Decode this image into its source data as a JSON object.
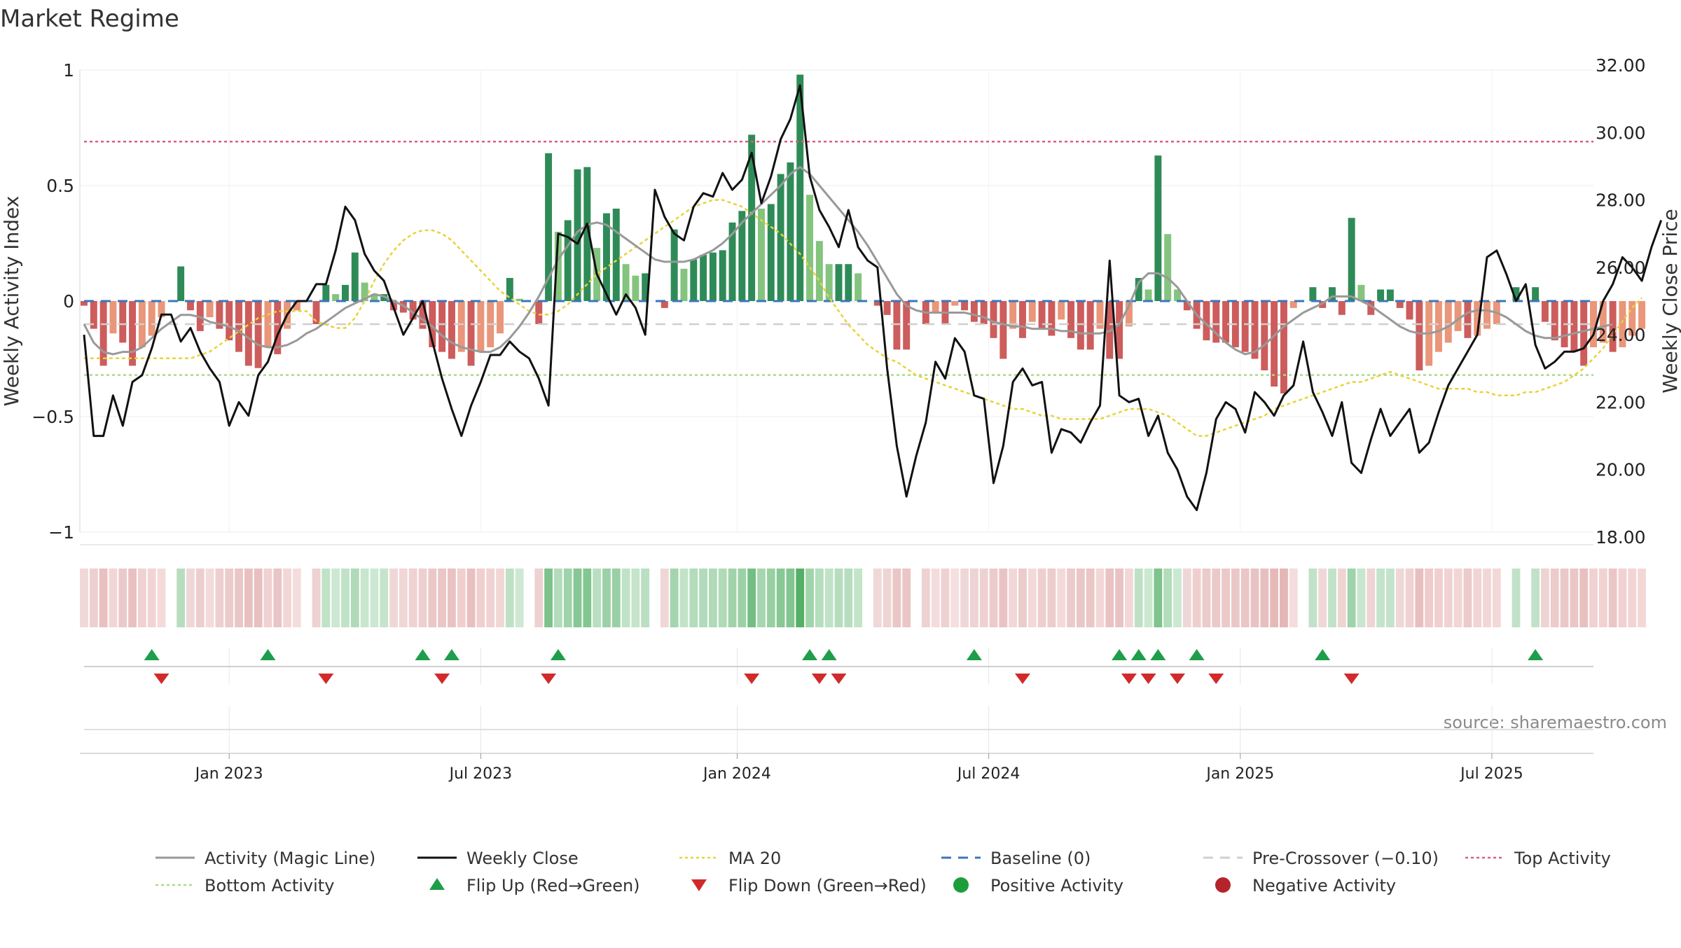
{
  "chart_data": {
    "type": "bar+line",
    "title": "Market Regime",
    "source": "source: sharemaestro.com",
    "ylabel_left": "Weekly Activity Index",
    "ylabel_right": "Weekly Close Price",
    "ylim_left": [
      -1.0,
      1.0
    ],
    "ylim_right": [
      18.0,
      32.0
    ],
    "yticks_left": [
      {
        "value": 1,
        "label": "1"
      },
      {
        "value": 0.5,
        "label": "0.5"
      },
      {
        "value": 0,
        "label": "0"
      },
      {
        "value": -0.5,
        "label": "−0.5"
      },
      {
        "value": -1,
        "label": "−1"
      }
    ],
    "yticks_right": [
      {
        "value": 32,
        "label": "32.00"
      },
      {
        "value": 30,
        "label": "30.00"
      },
      {
        "value": 28,
        "label": "28.00"
      },
      {
        "value": 26,
        "label": "26.00"
      },
      {
        "value": 24,
        "label": "24.00"
      },
      {
        "value": 22,
        "label": "22.00"
      },
      {
        "value": 20,
        "label": "20.00"
      },
      {
        "value": 18,
        "label": "18.00"
      }
    ],
    "x_week_range": [
      0,
      157
    ],
    "xticks": [
      {
        "week": 15,
        "label": "Jan 2023"
      },
      {
        "week": 41,
        "label": "Jul 2023"
      },
      {
        "week": 67.5,
        "label": "Jan 2024"
      },
      {
        "week": 93.5,
        "label": "Jul 2024"
      },
      {
        "week": 119.5,
        "label": "Jan 2025"
      },
      {
        "week": 145.5,
        "label": "Jul 2025"
      }
    ],
    "reference_lines": {
      "baseline": 0,
      "pre_crossover": -0.1,
      "top_activity": 0.69,
      "bottom_activity": -0.32
    },
    "activity_index": [
      -0.02,
      -0.12,
      -0.28,
      -0.14,
      -0.18,
      -0.28,
      -0.2,
      -0.15,
      -0.07,
      0.0,
      0.15,
      -0.04,
      -0.13,
      -0.07,
      -0.12,
      -0.17,
      -0.22,
      -0.28,
      -0.29,
      -0.2,
      -0.23,
      -0.12,
      -0.04,
      0.0,
      -0.1,
      0.07,
      0.03,
      0.07,
      0.21,
      0.08,
      0.03,
      0.03,
      -0.04,
      -0.05,
      -0.08,
      -0.12,
      -0.2,
      -0.22,
      -0.25,
      -0.22,
      -0.28,
      -0.22,
      -0.2,
      -0.14,
      0.1,
      0.01,
      0.0,
      -0.1,
      0.64,
      0.3,
      0.35,
      0.57,
      0.58,
      0.23,
      0.38,
      0.4,
      0.16,
      0.11,
      0.12,
      0.0,
      -0.03,
      0.31,
      0.14,
      0.18,
      0.2,
      0.21,
      0.22,
      0.34,
      0.39,
      0.72,
      0.4,
      0.42,
      0.55,
      0.6,
      0.98,
      0.46,
      0.26,
      0.16,
      0.16,
      0.16,
      0.12,
      0.0,
      -0.02,
      -0.06,
      -0.21,
      -0.21,
      0.0,
      -0.1,
      -0.05,
      -0.1,
      -0.02,
      -0.04,
      -0.09,
      -0.1,
      -0.16,
      -0.25,
      -0.12,
      -0.16,
      -0.09,
      -0.12,
      -0.15,
      -0.08,
      -0.16,
      -0.21,
      -0.21,
      -0.12,
      -0.25,
      -0.25,
      -0.11,
      0.1,
      0.05,
      0.63,
      0.29,
      0.05,
      -0.04,
      -0.12,
      -0.17,
      -0.18,
      -0.18,
      -0.2,
      -0.22,
      -0.25,
      -0.3,
      -0.37,
      -0.4,
      -0.03,
      0.0,
      0.06,
      -0.03,
      0.06,
      -0.06,
      0.36,
      0.07,
      -0.06,
      0.05,
      0.05,
      -0.03,
      -0.08,
      -0.3,
      -0.28,
      -0.22,
      -0.18,
      -0.13,
      -0.16,
      -0.15,
      -0.12,
      -0.1,
      0.0,
      0.06,
      0.0,
      0.06,
      -0.09,
      -0.17,
      -0.2,
      -0.22,
      -0.28,
      -0.2,
      -0.18,
      -0.22,
      -0.2,
      -0.15,
      -0.12
    ],
    "weekly_close": [
      24.0,
      21.0,
      21.0,
      22.2,
      21.3,
      22.6,
      22.8,
      23.6,
      24.6,
      24.6,
      23.8,
      24.2,
      23.5,
      23.0,
      22.6,
      21.3,
      22.0,
      21.6,
      22.8,
      23.2,
      24.0,
      24.6,
      25.0,
      25.0,
      25.5,
      25.5,
      26.5,
      27.8,
      27.4,
      26.4,
      25.9,
      25.6,
      24.8,
      24.0,
      24.5,
      25.0,
      23.8,
      22.7,
      21.8,
      21.0,
      21.9,
      22.6,
      23.4,
      23.4,
      23.8,
      23.5,
      23.3,
      22.7,
      21.9,
      27.0,
      26.9,
      26.7,
      27.3,
      25.8,
      25.2,
      24.6,
      25.2,
      24.8,
      24.0,
      28.3,
      27.5,
      27.0,
      26.8,
      27.8,
      28.2,
      28.1,
      28.8,
      28.3,
      28.6,
      29.4,
      27.9,
      28.7,
      29.8,
      30.4,
      31.4,
      28.7,
      27.7,
      27.2,
      26.6,
      27.7,
      26.6,
      26.2,
      26.0,
      23.0,
      20.7,
      19.2,
      20.4,
      21.4,
      23.2,
      22.7,
      23.9,
      23.5,
      22.2,
      22.1,
      19.6,
      20.7,
      22.6,
      23.0,
      22.5,
      22.6,
      20.5,
      21.2,
      21.1,
      20.8,
      21.4,
      21.9,
      26.2,
      22.2,
      22.0,
      22.1,
      21.0,
      21.6,
      20.5,
      20.0,
      19.2,
      18.8,
      19.9,
      21.5,
      22.0,
      21.8,
      21.1,
      22.3,
      22.0,
      21.6,
      22.2,
      22.5,
      23.8,
      22.3,
      21.7,
      21.0,
      22.0,
      20.2,
      19.9,
      20.9,
      21.8,
      21.0,
      21.4,
      21.8,
      20.5,
      20.8,
      21.7,
      22.5,
      23.0,
      23.5,
      24.0,
      26.3,
      26.5,
      25.8,
      25.0,
      25.5,
      23.7,
      23.0,
      23.2,
      23.5,
      23.5,
      23.6,
      24.0,
      25.0,
      25.5,
      26.3,
      26.0,
      25.6,
      26.6,
      27.4
    ],
    "ma20": [
      23.3,
      23.3,
      23.3,
      23.3,
      23.3,
      23.3,
      23.3,
      23.3,
      23.3,
      23.3,
      23.3,
      23.3,
      23.4,
      23.5,
      23.7,
      23.9,
      24.1,
      24.3,
      24.5,
      24.6,
      24.7,
      24.7,
      24.7,
      24.7,
      24.4,
      24.3,
      24.2,
      24.2,
      24.5,
      25.0,
      25.6,
      26.1,
      26.5,
      26.8,
      27.0,
      27.1,
      27.1,
      27.0,
      26.8,
      26.5,
      26.2,
      25.9,
      25.6,
      25.3,
      25.1,
      24.9,
      24.7,
      24.6,
      24.6,
      24.7,
      24.9,
      25.2,
      25.5,
      25.8,
      26.0,
      26.2,
      26.4,
      26.6,
      26.8,
      27.0,
      27.2,
      27.4,
      27.6,
      27.8,
      27.9,
      28.0,
      28.0,
      27.9,
      27.8,
      27.6,
      27.4,
      27.2,
      27.0,
      26.7,
      26.4,
      26.0,
      25.6,
      25.1,
      24.7,
      24.3,
      24.0,
      23.7,
      23.5,
      23.3,
      23.2,
      23.0,
      22.8,
      22.7,
      22.6,
      22.5,
      22.4,
      22.3,
      22.2,
      22.1,
      22.0,
      21.9,
      21.8,
      21.8,
      21.7,
      21.6,
      21.6,
      21.5,
      21.5,
      21.5,
      21.5,
      21.5,
      21.6,
      21.7,
      21.8,
      21.8,
      21.8,
      21.7,
      21.6,
      21.4,
      21.2,
      21.0,
      21.0,
      21.1,
      21.2,
      21.3,
      21.4,
      21.5,
      21.6,
      21.8,
      21.9,
      22.0,
      22.1,
      22.2,
      22.3,
      22.4,
      22.5,
      22.6,
      22.6,
      22.7,
      22.8,
      22.9,
      22.8,
      22.7,
      22.6,
      22.5,
      22.4,
      22.4,
      22.4,
      22.4,
      22.3,
      22.3,
      22.2,
      22.2,
      22.2,
      22.3,
      22.3,
      22.4,
      22.5,
      22.6,
      22.8,
      23.0,
      23.3,
      23.6,
      24.0,
      24.4,
      24.8,
      25.1
    ],
    "magic_line": [
      -0.1,
      -0.18,
      -0.22,
      -0.23,
      -0.22,
      -0.22,
      -0.2,
      -0.16,
      -0.12,
      -0.09,
      -0.06,
      -0.06,
      -0.07,
      -0.09,
      -0.1,
      -0.11,
      -0.13,
      -0.16,
      -0.19,
      -0.2,
      -0.2,
      -0.19,
      -0.17,
      -0.14,
      -0.12,
      -0.09,
      -0.06,
      -0.03,
      -0.01,
      0.01,
      0.03,
      0.02,
      0.0,
      -0.02,
      -0.05,
      -0.08,
      -0.11,
      -0.15,
      -0.18,
      -0.2,
      -0.21,
      -0.22,
      -0.22,
      -0.2,
      -0.16,
      -0.11,
      -0.05,
      0.02,
      0.1,
      0.18,
      0.24,
      0.3,
      0.33,
      0.34,
      0.33,
      0.3,
      0.27,
      0.24,
      0.21,
      0.18,
      0.17,
      0.17,
      0.17,
      0.18,
      0.2,
      0.22,
      0.25,
      0.29,
      0.34,
      0.38,
      0.42,
      0.46,
      0.5,
      0.55,
      0.58,
      0.55,
      0.5,
      0.45,
      0.4,
      0.35,
      0.3,
      0.24,
      0.17,
      0.1,
      0.03,
      -0.02,
      -0.04,
      -0.05,
      -0.05,
      -0.05,
      -0.05,
      -0.05,
      -0.06,
      -0.07,
      -0.09,
      -0.1,
      -0.11,
      -0.11,
      -0.12,
      -0.12,
      -0.12,
      -0.13,
      -0.13,
      -0.14,
      -0.14,
      -0.14,
      -0.13,
      -0.1,
      -0.02,
      0.08,
      0.12,
      0.12,
      0.1,
      0.06,
      0.0,
      -0.06,
      -0.1,
      -0.14,
      -0.18,
      -0.21,
      -0.23,
      -0.22,
      -0.19,
      -0.15,
      -0.11,
      -0.08,
      -0.05,
      -0.03,
      -0.01,
      0.02,
      0.02,
      0.02,
      0.0,
      -0.02,
      -0.05,
      -0.08,
      -0.11,
      -0.13,
      -0.14,
      -0.14,
      -0.13,
      -0.11,
      -0.08,
      -0.05,
      -0.04,
      -0.04,
      -0.05,
      -0.07,
      -0.1,
      -0.13,
      -0.15,
      -0.16,
      -0.16,
      -0.15,
      -0.14,
      -0.13,
      -0.12,
      -0.11,
      -0.1
    ],
    "flip_up_weeks": [
      7,
      19,
      35,
      38,
      49,
      75,
      77,
      92,
      107,
      109,
      111,
      115,
      128,
      150
    ],
    "flip_down_weeks": [
      8,
      25,
      37,
      48,
      69,
      76,
      78,
      97,
      108,
      110,
      113,
      117,
      131
    ],
    "legend": [
      {
        "label": "Activity (Magic Line)",
        "style": "line",
        "color": "#999999"
      },
      {
        "label": "Weekly Close",
        "style": "line",
        "color": "#111111"
      },
      {
        "label": "MA 20",
        "style": "dotted",
        "color": "#e8d33a"
      },
      {
        "label": "Baseline (0)",
        "style": "dashed",
        "color": "#3a77b8"
      },
      {
        "label": "Pre-Crossover (−0.10)",
        "style": "dashed",
        "color": "#cfcfcf"
      },
      {
        "label": "Top Activity",
        "style": "dotted",
        "color": "#d9607e"
      },
      {
        "label": "Bottom Activity",
        "style": "dotted",
        "color": "#a8dc88"
      },
      {
        "label": "Flip Up (Red→Green)",
        "style": "triangle-up",
        "color": "#1e9e4a"
      },
      {
        "label": "Flip Down (Green→Red)",
        "style": "triangle-down",
        "color": "#d12a2a"
      },
      {
        "label": "Positive Activity",
        "style": "circle",
        "color": "#1e9e3a"
      },
      {
        "label": "Negative Activity",
        "style": "circle",
        "color": "#b5242c"
      }
    ],
    "colors": {
      "pos_strong": "#2e8b57",
      "pos_light": "#84c47e",
      "neg_strong": "#cd5c5c",
      "neg_light": "#e9967a"
    }
  }
}
